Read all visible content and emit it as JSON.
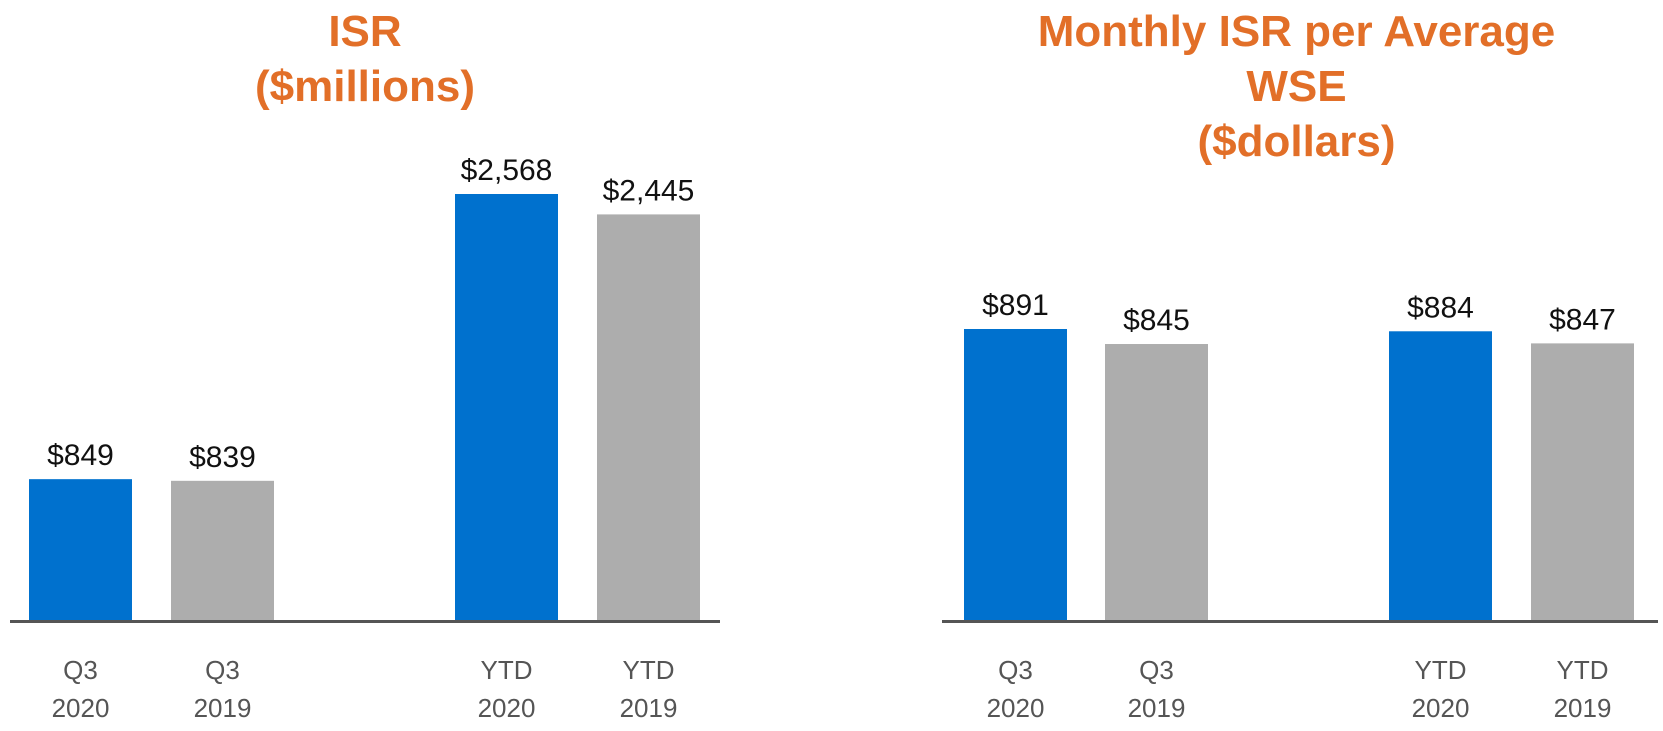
{
  "colors": {
    "title": "#e26f28",
    "series_2020": "#0071ce",
    "series_2019": "#adadad",
    "axis": "#555555"
  },
  "chart_data": [
    {
      "type": "bar",
      "title_lines": [
        "ISR",
        "($millions)"
      ],
      "categories": [
        [
          "Q3",
          "2020"
        ],
        [
          "Q3",
          "2019"
        ],
        [
          "YTD",
          "2020"
        ],
        [
          "YTD",
          "2019"
        ]
      ],
      "values": [
        849,
        839,
        2568,
        2445
      ],
      "value_labels": [
        "$849",
        "$839",
        "$2,568",
        "$2,445"
      ],
      "series_colors": [
        "series_2020",
        "series_2019",
        "series_2020",
        "series_2019"
      ],
      "ylim": [
        0,
        2568
      ],
      "xlabel": "",
      "ylabel": "",
      "grid": false,
      "legend": "none"
    },
    {
      "type": "bar",
      "title_lines": [
        "Monthly ISR per Average",
        "WSE",
        "($dollars)"
      ],
      "categories": [
        [
          "Q3",
          "2020"
        ],
        [
          "Q3",
          "2019"
        ],
        [
          "YTD",
          "2020"
        ],
        [
          "YTD",
          "2019"
        ]
      ],
      "values": [
        891,
        845,
        884,
        847
      ],
      "value_labels": [
        "$891",
        "$845",
        "$884",
        "$847"
      ],
      "series_colors": [
        "series_2020",
        "series_2019",
        "series_2020",
        "series_2019"
      ],
      "ylim": [
        0,
        891
      ],
      "xlabel": "",
      "ylabel": "",
      "grid": false,
      "legend": "none"
    }
  ]
}
